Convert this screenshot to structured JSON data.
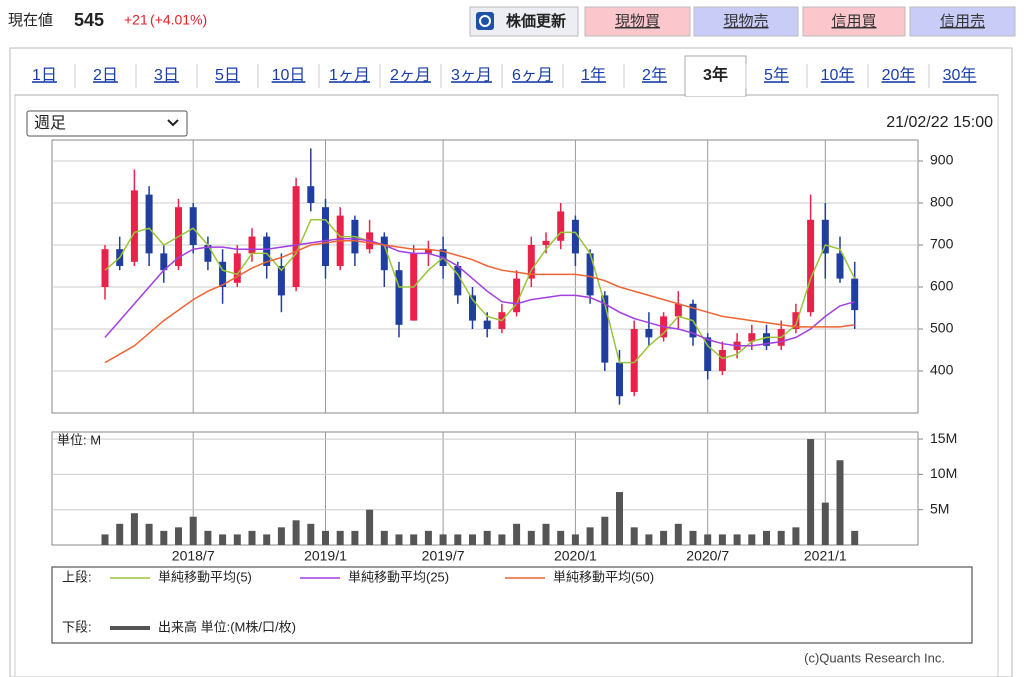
{
  "header": {
    "label": "現在値",
    "price": "545",
    "change": "+21",
    "change_pct": "(+4.01%)",
    "buttons": [
      "株価更新",
      "現物買",
      "現物売",
      "信用買",
      "信用売"
    ]
  },
  "tabs": [
    "1日",
    "2日",
    "3日",
    "5日",
    "10日",
    "1ヶ月",
    "2ヶ月",
    "3ヶ月",
    "6ヶ月",
    "1年",
    "2年",
    "3年",
    "5年",
    "10年",
    "20年",
    "30年"
  ],
  "active_tab": 11,
  "dropdown": "週足",
  "timestamp": "21/02/22 15:00",
  "chart_data": [
    {
      "type": "candlestick",
      "up_color": "#e8224a",
      "down_color": "#1f3e9e",
      "categories": [
        null,
        null,
        null,
        null,
        null,
        null,
        "2018/7",
        null,
        null,
        null,
        null,
        null,
        null,
        null,
        null,
        "2019/1",
        null,
        null,
        null,
        null,
        null,
        null,
        null,
        "2019/7",
        null,
        null,
        null,
        null,
        null,
        null,
        null,
        null,
        "2020/1",
        null,
        null,
        null,
        null,
        null,
        null,
        null,
        null,
        "2020/7",
        null,
        null,
        null,
        null,
        null,
        null,
        null,
        "2021/1",
        null,
        null
      ],
      "open": [
        600,
        690,
        660,
        820,
        680,
        650,
        790,
        700,
        660,
        610,
        680,
        720,
        650,
        600,
        840,
        790,
        650,
        760,
        690,
        720,
        640,
        520,
        680,
        690,
        650,
        580,
        520,
        500,
        540,
        620,
        700,
        710,
        760,
        680,
        580,
        420,
        350,
        500,
        480,
        530,
        560,
        480,
        400,
        450,
        470,
        490,
        460,
        500,
        540,
        760,
        680,
        620
      ],
      "high": [
        700,
        720,
        880,
        840,
        700,
        810,
        800,
        720,
        690,
        700,
        740,
        730,
        680,
        860,
        930,
        810,
        790,
        770,
        760,
        730,
        660,
        700,
        710,
        720,
        660,
        600,
        540,
        560,
        640,
        720,
        730,
        800,
        770,
        690,
        590,
        450,
        520,
        540,
        540,
        590,
        570,
        490,
        470,
        490,
        510,
        510,
        520,
        560,
        820,
        800,
        720,
        660
      ],
      "low": [
        570,
        640,
        650,
        650,
        610,
        640,
        680,
        640,
        560,
        600,
        660,
        620,
        540,
        590,
        780,
        620,
        640,
        650,
        680,
        600,
        480,
        520,
        650,
        620,
        560,
        500,
        480,
        490,
        530,
        600,
        680,
        690,
        650,
        560,
        400,
        320,
        340,
        460,
        470,
        500,
        460,
        380,
        390,
        430,
        450,
        450,
        450,
        490,
        530,
        620,
        610,
        500
      ],
      "close": [
        690,
        650,
        830,
        680,
        640,
        790,
        700,
        660,
        600,
        680,
        720,
        650,
        580,
        840,
        800,
        650,
        770,
        680,
        730,
        640,
        510,
        680,
        690,
        650,
        580,
        520,
        500,
        540,
        620,
        700,
        710,
        780,
        680,
        580,
        420,
        340,
        500,
        480,
        530,
        560,
        480,
        400,
        450,
        470,
        490,
        460,
        500,
        540,
        760,
        680,
        620,
        545
      ],
      "series": [
        {
          "name": "単純移動平均(5)",
          "color": "#9cc43a",
          "values": [
            640,
            670,
            730,
            740,
            700,
            720,
            740,
            700,
            640,
            630,
            680,
            680,
            640,
            680,
            760,
            760,
            720,
            720,
            710,
            700,
            600,
            600,
            640,
            670,
            630,
            570,
            530,
            520,
            560,
            640,
            690,
            730,
            730,
            680,
            560,
            420,
            420,
            460,
            490,
            530,
            520,
            460,
            430,
            440,
            470,
            480,
            480,
            510,
            620,
            700,
            690,
            620
          ]
        },
        {
          "name": "単純移動平均(25)",
          "color": "#a33fe0",
          "values": [
            480,
            520,
            560,
            600,
            640,
            670,
            690,
            695,
            695,
            690,
            690,
            690,
            695,
            700,
            705,
            710,
            715,
            715,
            710,
            700,
            685,
            680,
            680,
            670,
            650,
            620,
            590,
            565,
            560,
            570,
            575,
            580,
            580,
            575,
            560,
            540,
            525,
            515,
            505,
            500,
            490,
            475,
            465,
            460,
            460,
            465,
            470,
            480,
            500,
            530,
            555,
            565
          ]
        },
        {
          "name": "単純移動平均(50)",
          "color": "#ee6433",
          "values": [
            420,
            440,
            460,
            490,
            520,
            545,
            570,
            590,
            605,
            625,
            645,
            660,
            670,
            685,
            700,
            705,
            710,
            710,
            705,
            700,
            695,
            690,
            690,
            685,
            675,
            665,
            650,
            640,
            635,
            630,
            630,
            630,
            630,
            625,
            615,
            600,
            590,
            580,
            570,
            560,
            550,
            540,
            530,
            525,
            520,
            515,
            510,
            505,
            505,
            505,
            505,
            510
          ]
        }
      ],
      "ylim": [
        300,
        950
      ],
      "yticks": [
        400,
        500,
        600,
        700,
        800,
        900
      ],
      "grid": true
    },
    {
      "type": "bar",
      "annotation": "単位: M",
      "series": [
        {
          "name": "出来高 単位:(M株/口/枚)",
          "color": "#555555",
          "values": [
            1.5,
            3,
            4.5,
            3,
            2,
            2.5,
            4,
            2,
            1.5,
            1.5,
            2,
            1.5,
            2.5,
            3.5,
            3,
            2,
            2,
            2,
            5,
            2,
            1.5,
            1.5,
            2,
            1.5,
            1.5,
            1.5,
            2,
            1.5,
            3,
            2,
            3,
            2,
            1.5,
            2.5,
            4,
            7.5,
            2.5,
            1.5,
            2,
            3,
            2,
            1.5,
            1.5,
            1.5,
            1.5,
            2,
            2,
            2.5,
            15,
            6,
            12,
            2
          ]
        }
      ],
      "ylim": [
        0,
        16
      ],
      "yticks": [
        {
          "value": 5,
          "label": "5M"
        },
        {
          "value": 10,
          "label": "10M"
        },
        {
          "value": 15,
          "label": "15M"
        }
      ],
      "grid": true
    }
  ],
  "legend": {
    "upper_label": "上段:",
    "lower_label": "下段:"
  },
  "copyright": "(c)Quants Research Inc."
}
